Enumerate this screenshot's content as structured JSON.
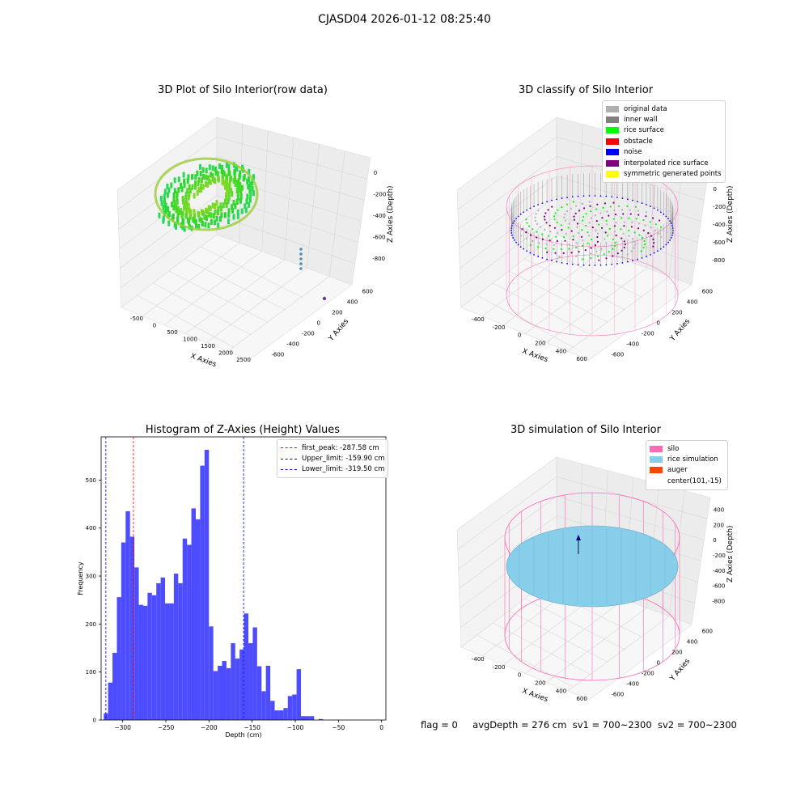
{
  "figure": {
    "suptitle": "CJASD04 2026-01-12 08:25:40",
    "footer": {
      "flag": "flag = 0",
      "avgDepth": "avgDepth = 276 cm",
      "sv1": "sv1 = 700~2300",
      "sv2": "sv2 = 700~2300"
    }
  },
  "colors": {
    "original": "#b0b0b0",
    "inner_wall": "#808080",
    "rice_surface": "#00ff00",
    "obstacle": "#ff0000",
    "noise": "#0000ff",
    "interpolated": "#800080",
    "symmetric": "#ffff00",
    "silo": "#ff69b4",
    "rice_sim": "#87ceeb",
    "auger": "#ff4500",
    "hist_bar": "#4d4dff",
    "first_peak_line": "#ff0000",
    "limit_line": "#0000cc"
  },
  "chart_data": [
    {
      "type": "scatter",
      "projection": "3d",
      "title": "3D Plot of Silo Interior(row data)",
      "xlabel": "X Axies",
      "ylabel": "Y Axies",
      "zlabel": "Z Axies (Depth)",
      "xticks": [
        "-500",
        "0",
        "500",
        "1000",
        "1500",
        "2000",
        "2500"
      ],
      "yticks": [
        "-600",
        "-400",
        "-200",
        "0",
        "200",
        "400",
        "600"
      ],
      "zticks": [
        "-800",
        "-600",
        "-400",
        "-200",
        "0"
      ],
      "grid": true
    },
    {
      "type": "scatter",
      "projection": "3d",
      "title": "3D classify of Silo Interior",
      "xlabel": "X Axies",
      "ylabel": "Y Axies",
      "zlabel": "Z Axies (Depth)",
      "xticks": [
        "-400",
        "-200",
        "0",
        "200",
        "400",
        "600"
      ],
      "yticks": [
        "-600",
        "-400",
        "-200",
        "0",
        "200",
        "400",
        "600"
      ],
      "zticks": [
        "-800",
        "-600",
        "-400",
        "-200",
        "0",
        "200"
      ],
      "legend": [
        "original data",
        "inner wall",
        "rice surface",
        "obstacle",
        "noise",
        "interpolated rice surface",
        "symmetric generated points"
      ],
      "legend_position": "top-right",
      "grid": true
    },
    {
      "type": "bar",
      "title": "Histogram of Z-Axies (Height) Values",
      "xlabel": "Depth (cm)",
      "ylabel": "Frequency",
      "xlim": [
        -325,
        5
      ],
      "ylim": [
        0,
        590
      ],
      "xticks": [
        -300,
        -250,
        -200,
        -150,
        -100,
        -50,
        0
      ],
      "yticks": [
        0,
        100,
        200,
        300,
        400,
        500
      ],
      "bin_start": -322,
      "bin_width": 5.08,
      "values": [
        14,
        78,
        140,
        256,
        370,
        435,
        382,
        318,
        240,
        238,
        265,
        260,
        285,
        297,
        243,
        243,
        305,
        285,
        378,
        365,
        441,
        418,
        530,
        563,
        195,
        102,
        113,
        123,
        108,
        160,
        128,
        147,
        222,
        160,
        193,
        112,
        60,
        113,
        40,
        20,
        20,
        25,
        50,
        53,
        106,
        8,
        8,
        8,
        0,
        2
      ],
      "vlines": [
        {
          "label": "first_peak: -287.58 cm",
          "x": -287.58,
          "color": "#ff0000"
        },
        {
          "label": "Upper_limit: -159.90 cm",
          "x": -159.9,
          "color": "#0000cc"
        },
        {
          "label": "Lower_limit: -319.50 cm",
          "x": -319.5,
          "color": "#0000cc"
        }
      ],
      "legend_position": "top-right"
    },
    {
      "type": "scatter",
      "projection": "3d",
      "title": "3D simulation of Silo Interior",
      "xlabel": "X Axies",
      "ylabel": "Y Axies",
      "zlabel": "Z Axies (Depth)",
      "xticks": [
        "-400",
        "-200",
        "0",
        "200",
        "400",
        "600"
      ],
      "yticks": [
        "-600",
        "-400",
        "-200",
        "0",
        "200",
        "400",
        "600"
      ],
      "zticks": [
        "-800",
        "-600",
        "-400",
        "-200",
        "0",
        "200",
        "400"
      ],
      "legend": [
        "silo",
        "rice simulation",
        "auger",
        "center(101,-15)"
      ],
      "legend_position": "top-right",
      "grid": true
    }
  ]
}
